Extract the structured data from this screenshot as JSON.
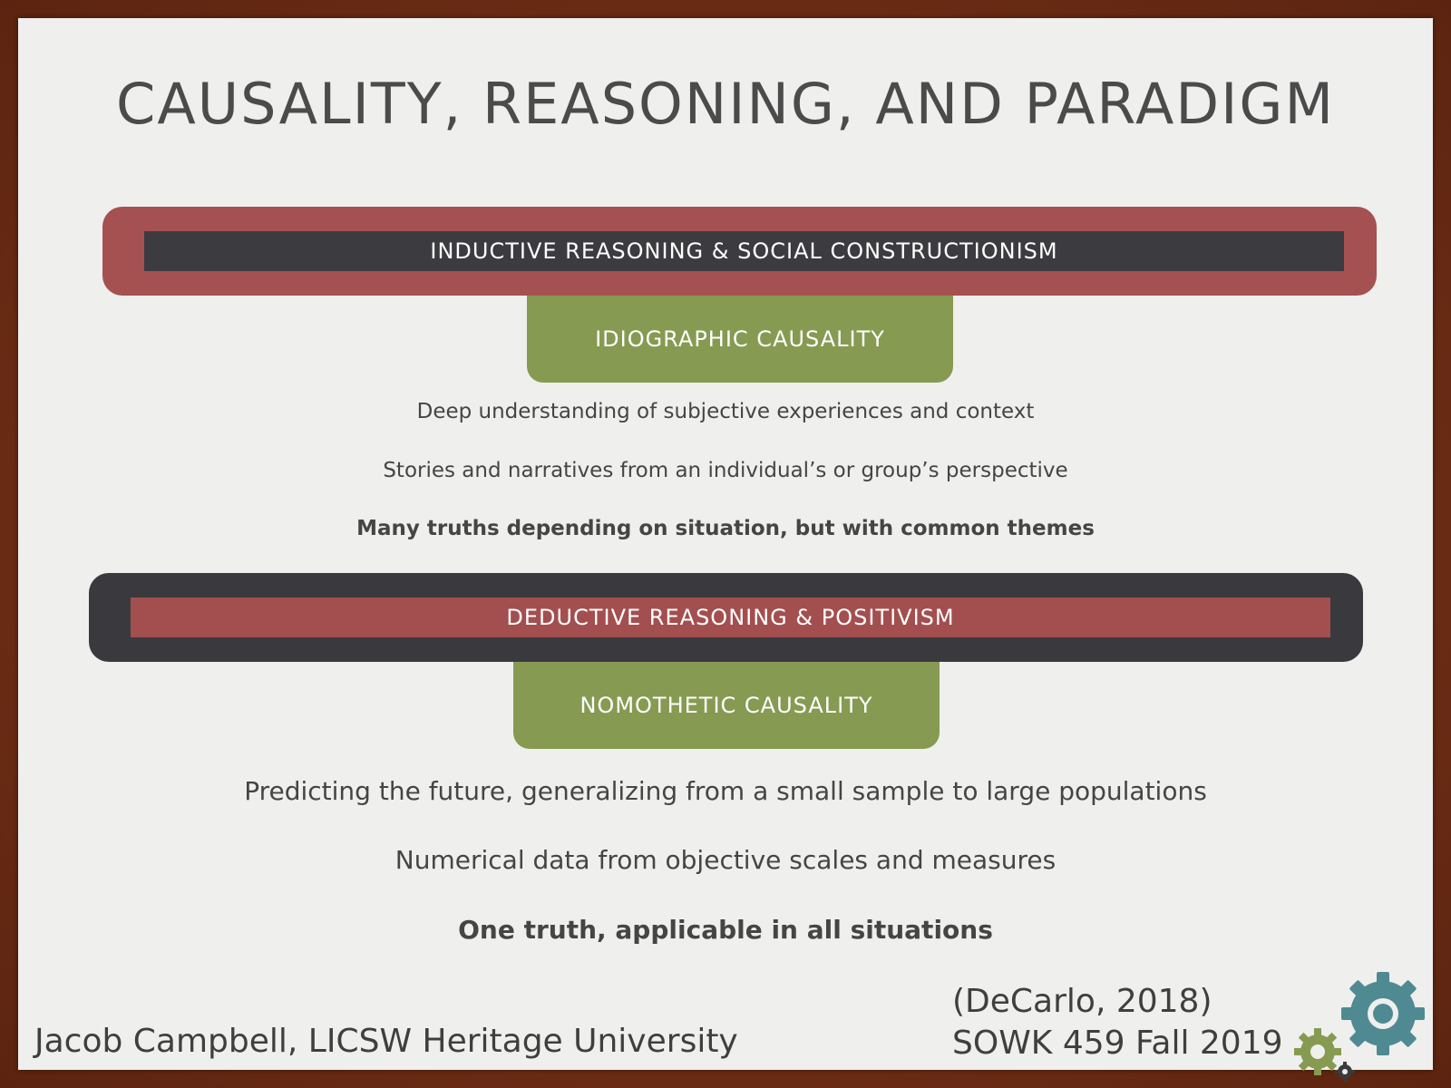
{
  "slide": {
    "title": "CAUSALITY, REASONING, AND PARADIGM",
    "section1": {
      "band_label": "INDUCTIVE REASONING & SOCIAL CONSTRUCTIONISM",
      "tab_label": "IDIOGRAPHIC CAUSALITY",
      "lines": [
        "Deep understanding of subjective experiences and context",
        "Stories and narratives from an individual’s or group’s perspective",
        "Many truths depending on situation, but with common themes"
      ]
    },
    "section2": {
      "band_label": "DEDUCTIVE REASONING & POSITIVISM",
      "tab_label": "NOMOTHETIC CAUSALITY",
      "lines": [
        "Predicting the future, generalizing from a small sample to large populations",
        "Numerical data from objective scales and measures",
        "One truth, applicable in all situations"
      ]
    },
    "footer": {
      "author": "Jacob Campbell, LICSW Heritage University",
      "citation": "(DeCarlo, 2018)",
      "course": "SOWK 459 Fall 2019"
    }
  },
  "colors": {
    "red": "#a55151",
    "dark": "#3c3b40",
    "green": "#879a52",
    "teal": "#4f8a93",
    "text": "#454545"
  },
  "icons": [
    "gears-icon"
  ]
}
